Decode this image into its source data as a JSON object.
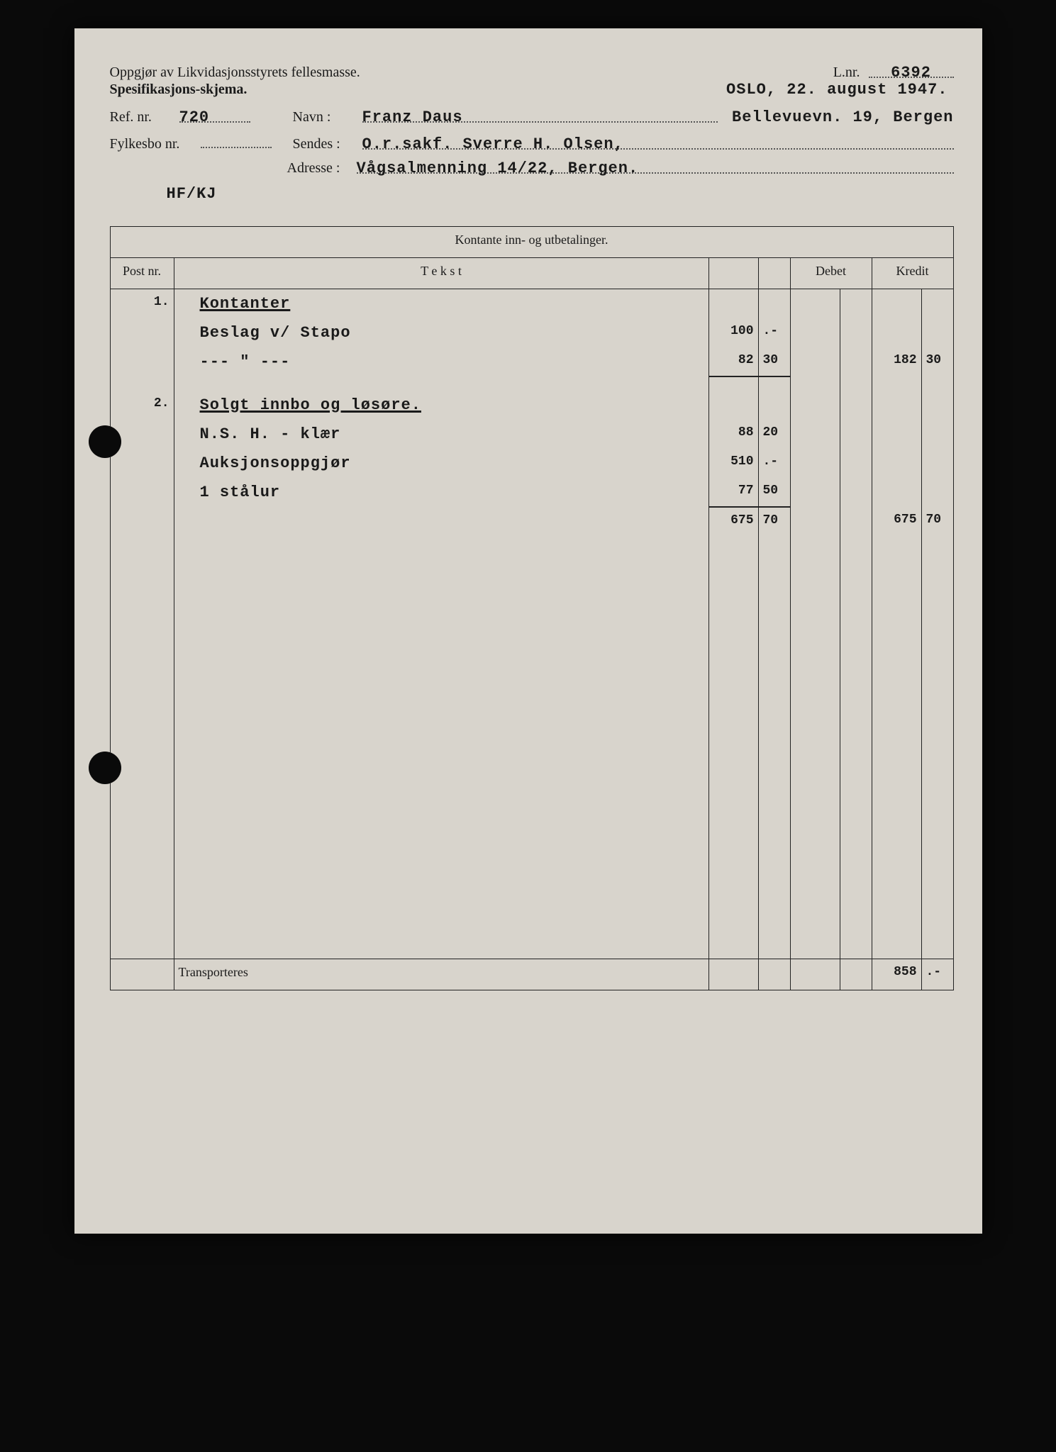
{
  "header": {
    "title1": "Oppgjør av Likvidasjonsstyrets fellesmasse.",
    "title2": "Spesifikasjons-skjema.",
    "lnr_label": "L.nr.",
    "lnr_value": "6392",
    "place_date": "OSLO, 22. august 1947.",
    "ref_label": "Ref. nr.",
    "ref_value": "720",
    "navn_label": "Navn :",
    "navn_value": "Franz Daus",
    "navn_addr": "Bellevuevn. 19, Bergen",
    "fylkes_label": "Fylkesbo nr.",
    "fylkes_value": "",
    "sendes_label": "Sendes :",
    "sendes_value": "O.r.sakf. Sverre H. Olsen,",
    "adresse_label": "Adresse :",
    "adresse_value": "Vågsalmenning 14/22, Bergen.",
    "clerk": "HF/KJ"
  },
  "table": {
    "title": "Kontante inn- og utbetalinger.",
    "col_post": "Post nr.",
    "col_tekst": "T e k s t",
    "col_debet": "Debet",
    "col_kredit": "Kredit",
    "footer_label": "Transporteres"
  },
  "rows": [
    {
      "post": "1.",
      "text": "Kontanter",
      "heading": true
    },
    {
      "text": "Beslag v/ Stapo",
      "sub_a": "100",
      "sub_b": ".-"
    },
    {
      "text": "--- \" ---",
      "sub_a": "82",
      "sub_b": "30",
      "kre_a": "182",
      "kre_b": "30",
      "underline_sub": true
    },
    {
      "spacer": true
    },
    {
      "post": "2.",
      "text": "Solgt innbo og løsøre.",
      "heading": true
    },
    {
      "text": "N.S. H. - klær",
      "sub_a": "88",
      "sub_b": "20"
    },
    {
      "text": "Auksjonsoppgjør",
      "sub_a": "510",
      "sub_b": ".-"
    },
    {
      "text": "1 stålur",
      "sub_a": "77",
      "sub_b": "50",
      "underline_sub": true
    },
    {
      "text": "",
      "sub_a": "675",
      "sub_b": "70",
      "kre_a": "675",
      "kre_b": "70"
    }
  ],
  "footer": {
    "kre_a": "858",
    "kre_b": ".-"
  },
  "colors": {
    "page_bg": "#d8d4cc",
    "ink": "#1a1a1a",
    "frame_bg": "#0a0a0a"
  }
}
